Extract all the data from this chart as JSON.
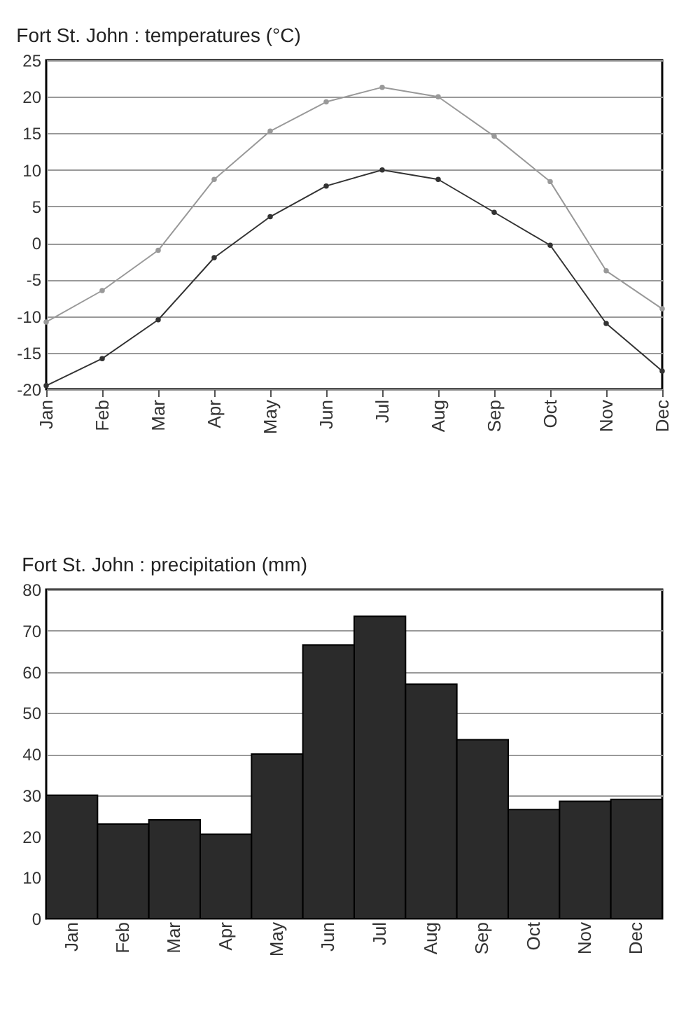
{
  "chart_data": [
    {
      "type": "line",
      "title": "Fort St. John : temperatures (°C)",
      "categories": [
        "Jan",
        "Feb",
        "Mar",
        "Apr",
        "May",
        "Jun",
        "Jul",
        "Aug",
        "Sep",
        "Oct",
        "Nov",
        "Dec"
      ],
      "series": [
        {
          "color": "#999999",
          "values": [
            -10.8,
            -6.5,
            -1,
            8.7,
            15.3,
            19.3,
            21.3,
            20,
            14.6,
            8.4,
            -3.8,
            -9
          ]
        },
        {
          "color": "#333333",
          "values": [
            -19.5,
            -15.8,
            -10.5,
            -2,
            3.6,
            7.8,
            10,
            8.7,
            4.2,
            -0.3,
            -11,
            -17.5
          ]
        }
      ],
      "ylim": [
        -20,
        25
      ],
      "yticks": [
        -20,
        -15,
        -10,
        -5,
        0,
        5,
        10,
        15,
        20,
        25
      ],
      "grid": "y",
      "marker": "circle",
      "line_style": "solid"
    },
    {
      "type": "bar",
      "title": "Fort St. John : precipitation (mm)",
      "categories": [
        "Jan",
        "Feb",
        "Mar",
        "Apr",
        "May",
        "Jun",
        "Jul",
        "Aug",
        "Sep",
        "Oct",
        "Nov",
        "Dec"
      ],
      "values": [
        30,
        23,
        24,
        20.5,
        40,
        66.5,
        73.5,
        57,
        43.5,
        26.5,
        28.5,
        29
      ],
      "color": "#2b2b2b",
      "ylim": [
        0,
        80
      ],
      "yticks": [
        0,
        10,
        20,
        30,
        40,
        50,
        60,
        70,
        80
      ],
      "grid": "y"
    }
  ]
}
